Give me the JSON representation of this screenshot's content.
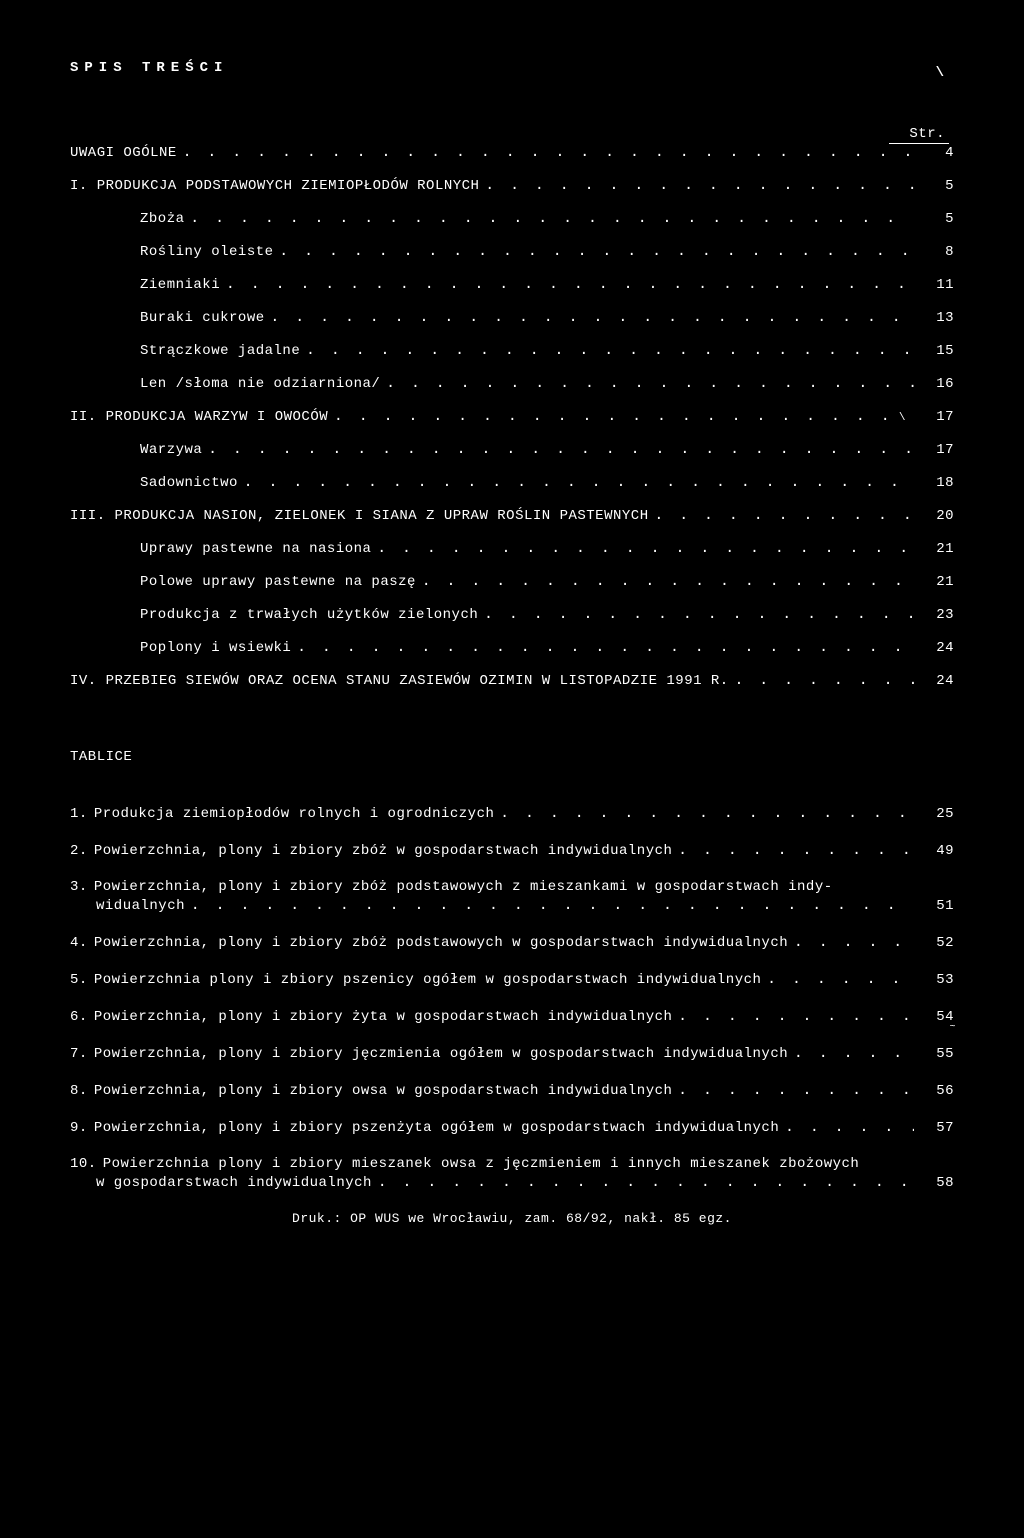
{
  "header": "SPIS  TREŚCI",
  "header_slash": "\\",
  "page_col": "Str.",
  "toc": [
    {
      "label": "UWAGI OGÓLNE",
      "page": "4",
      "indent": 0
    },
    {
      "label": "I. PRODUKCJA PODSTAWOWYCH ZIEMIOPŁODÓW ROLNYCH",
      "page": "5",
      "indent": 0
    },
    {
      "label": "Zboża",
      "page": "5",
      "indent": 1
    },
    {
      "label": "Rośliny oleiste",
      "page": "8",
      "indent": 1
    },
    {
      "label": "Ziemniaki",
      "page": "11",
      "indent": 1
    },
    {
      "label": "Buraki cukrowe",
      "page": "13",
      "indent": 1
    },
    {
      "label": "Strączkowe jadalne",
      "page": "15",
      "indent": 1
    },
    {
      "label": "Len /słoma nie odziarniona/",
      "page": "16",
      "indent": 1
    },
    {
      "label": "II. PRODUKCJA WARZYW I OWOCÓW",
      "page": "17",
      "indent": 0,
      "tail_slash": true
    },
    {
      "label": "Warzywa",
      "page": "17",
      "indent": 1
    },
    {
      "label": "Sadownictwo",
      "page": "18",
      "indent": 1
    },
    {
      "label": "III. PRODUKCJA NASION, ZIELONEK I SIANA Z UPRAW ROŚLIN PASTEWNYCH",
      "page": "20",
      "indent": 0
    },
    {
      "label": "Uprawy pastewne na nasiona",
      "page": "21",
      "indent": 1
    },
    {
      "label": "Polowe uprawy pastewne na paszę",
      "page": "21",
      "indent": 1,
      "sub_slash": true
    },
    {
      "label": "Produkcja z trwałych użytków zielonych",
      "page": "23",
      "indent": 1
    },
    {
      "label": "Poplony i wsiewki",
      "page": "24",
      "indent": 1
    },
    {
      "label": "IV. PRZEBIEG SIEWÓW ORAZ OCENA STANU ZASIEWÓW OZIMIN W LISTOPADZIE 1991 R.",
      "page": "24",
      "indent": 0
    }
  ],
  "tablice_header": "TABLICE",
  "tablice": [
    {
      "num": "1.",
      "text": "Produkcja ziemiopłodów rolnych i ogrodniczych",
      "page": "25"
    },
    {
      "num": "2.",
      "text": "Powierzchnia, plony i zbiory zbóż w gospodarstwach indywidualnych",
      "page": "49"
    },
    {
      "num": "3.",
      "text_l1": "Powierzchnia, plony i zbiory zbóż podstawowych z mieszankami w gospodarstwach indy-",
      "text_l2": "widualnych",
      "page": "51",
      "multiline": true
    },
    {
      "num": "4.",
      "text": "Powierzchnia, plony i zbiory zbóż podstawowych w gospodarstwach indywidualnych",
      "page": "52"
    },
    {
      "num": "5.",
      "text": "Powierzchnia  plony i zbiory pszenicy ogółem w gospodarstwach indywidualnych",
      "page": "53"
    },
    {
      "num": "6.",
      "text": "Powierzchnia, plony i zbiory żyta w gospodarstwach indywidualnych",
      "page": "54",
      "tilde": true
    },
    {
      "num": "7.",
      "text": "Powierzchnia, plony i zbiory jęczmienia ogółem w gospodarstwach indywidualnych",
      "page": "55"
    },
    {
      "num": "8.",
      "text": "Powierzchnia, plony i zbiory owsa w gospodarstwach indywidualnych",
      "page": "56"
    },
    {
      "num": "9.",
      "text": "Powierzchnia, plony i zbiory pszenżyta ogółem w gospodarstwach indywidualnych",
      "page": "57"
    },
    {
      "num": "10.",
      "text_l1": "Powierzchnia plony i zbiory mieszanek owsa z jęczmieniem i innych mieszanek zbożowych",
      "text_l2": "w gospodarstwach indywidualnych",
      "page": "58",
      "multiline": true
    }
  ],
  "footer": "Druk.: OP WUS we Wrocławiu, zam. 68/92, nakł. 85 egz.",
  "dots": ". . . . . . . . . . . . . . . . . . . . . . . . . . . . . . . . . . . . . . . . . . . . . . . . . . . . . . . . . . . . . . . . . . . . . ."
}
